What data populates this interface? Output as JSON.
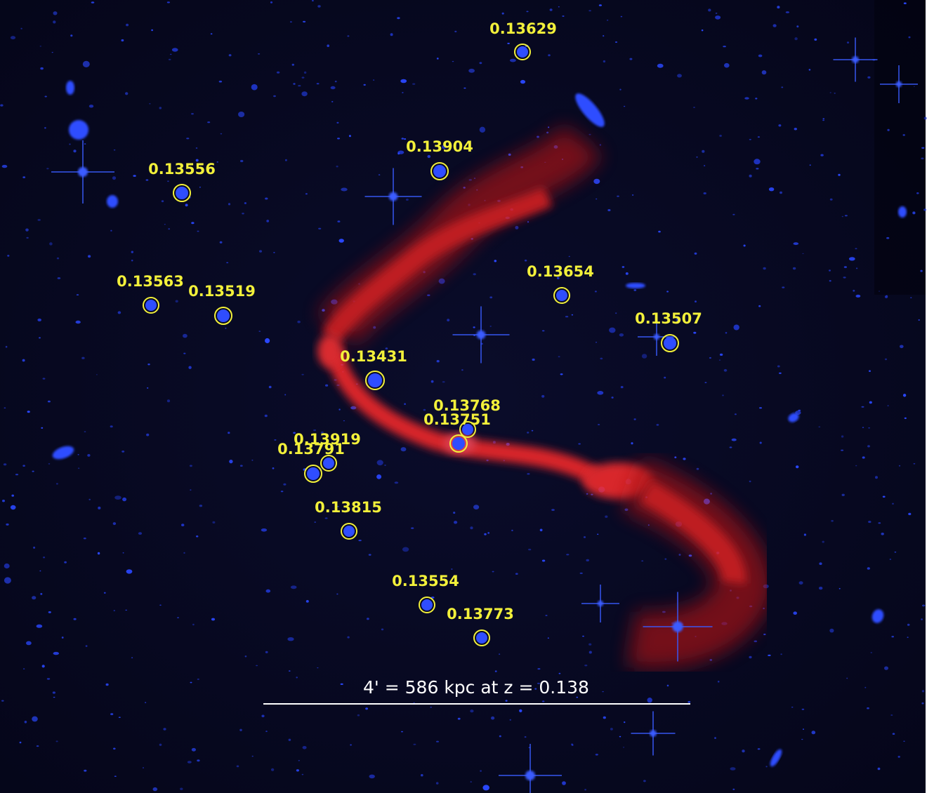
{
  "galaxies": [
    {
      "label": "0.13629"
    },
    {
      "label": "0.13904"
    },
    {
      "label": "0.13556"
    },
    {
      "label": "0.13563"
    },
    {
      "label": "0.13519"
    },
    {
      "label": "0.13654"
    },
    {
      "label": "0.13507"
    },
    {
      "label": "0.13431"
    },
    {
      "label": "0.13768"
    },
    {
      "label": "0.13751"
    },
    {
      "label": "0.13919"
    },
    {
      "label": "0.13791"
    },
    {
      "label": "0.13815"
    },
    {
      "label": "0.13554"
    },
    {
      "label": "0.13773"
    }
  ],
  "scale_bar": {
    "label": "4' = 586 kpc at z = 0.138"
  }
}
